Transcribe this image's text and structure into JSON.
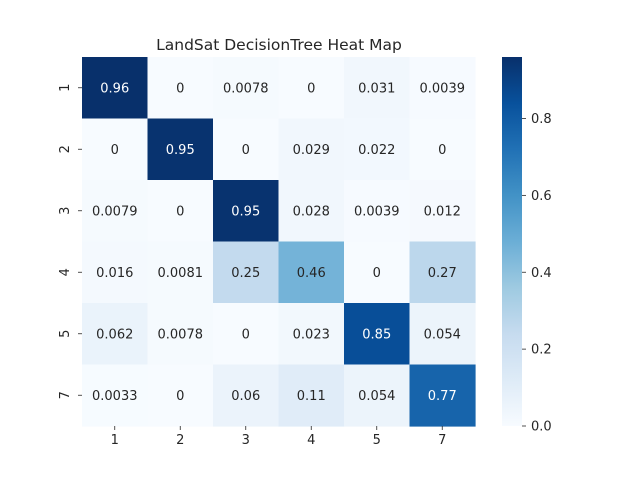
{
  "chart_data": {
    "type": "heatmap",
    "title": "LandSat DecisionTree Heat Map",
    "xlabel": "",
    "ylabel": "",
    "x_categories": [
      "1",
      "2",
      "3",
      "4",
      "5",
      "7"
    ],
    "y_categories": [
      "1",
      "2",
      "3",
      "4",
      "5",
      "7"
    ],
    "cells": [
      [
        "0.96",
        "0",
        "0.0078",
        "0",
        "0.031",
        "0.0039"
      ],
      [
        "0",
        "0.95",
        "0",
        "0.029",
        "0.022",
        "0"
      ],
      [
        "0.0079",
        "0",
        "0.95",
        "0.028",
        "0.0039",
        "0.012"
      ],
      [
        "0.016",
        "0.0081",
        "0.25",
        "0.46",
        "0",
        "0.27"
      ],
      [
        "0.062",
        "0.0078",
        "0",
        "0.023",
        "0.85",
        "0.054"
      ],
      [
        "0.0033",
        "0",
        "0.06",
        "0.11",
        "0.054",
        "0.77"
      ]
    ],
    "colorbar": {
      "range": [
        0.0,
        0.96
      ],
      "ticks": [
        "0.0",
        "0.2",
        "0.4",
        "0.6",
        "0.8"
      ],
      "colormap": "Blues",
      "colors": [
        "#f7fbff",
        "#deebf7",
        "#c6dbef",
        "#9ecae1",
        "#6baed6",
        "#4292c6",
        "#2171b5",
        "#08519c",
        "#08306b"
      ]
    },
    "annotation_text_dark": "#262626",
    "annotation_text_light": "#ffffff",
    "grid": false
  }
}
